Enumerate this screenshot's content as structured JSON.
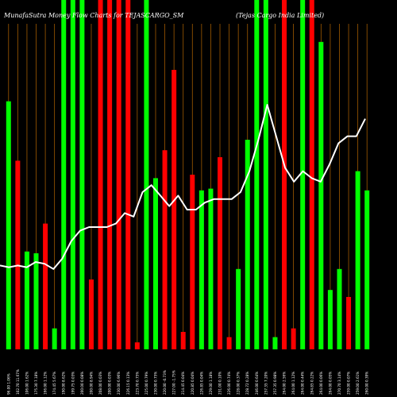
{
  "chart_data": {
    "type": "bar",
    "title_left": "MunafaSutra Money Flow Charts for TEJASCARGO_SM",
    "title_right": "(Tejas Cargo India Limited)",
    "y_range": [
      0,
      100
    ],
    "grid_color": "#a05a00",
    "line_color": "#ffffff",
    "bars": [
      {
        "label": "96.00 1.06%",
        "value": 71,
        "color": "#00ff00"
      },
      {
        "label": "102.70 11.67%",
        "value": 54,
        "color": "#ff0000"
      },
      {
        "label": "106.00 1.62%",
        "value": 28,
        "color": "#00ff00"
      },
      {
        "label": "175.30 7.18%",
        "value": 27.5,
        "color": "#00ff00"
      },
      {
        "label": "166.00 1.12%",
        "value": 36,
        "color": "#ff0000"
      },
      {
        "label": "174.45 5.67%",
        "value": 6,
        "color": "#00ff00"
      },
      {
        "label": "190.00 8.62%",
        "value": 100,
        "color": "#00ff00"
      },
      {
        "label": "199.75 0.03%",
        "value": 100,
        "color": "#00ff00"
      },
      {
        "label": "200.00 0.08%",
        "value": 100,
        "color": "#00ff00"
      },
      {
        "label": "200.00 8.94%",
        "value": 20,
        "color": "#ff0000"
      },
      {
        "label": "208.00 0.03%",
        "value": 100,
        "color": "#ff0000"
      },
      {
        "label": "200.00 0.03%",
        "value": 100,
        "color": "#ff0000"
      },
      {
        "label": "230.00 6.96%",
        "value": 100,
        "color": "#ff0000"
      },
      {
        "label": "226.15 0.13%",
        "value": 100,
        "color": "#ff0000"
      },
      {
        "label": "223.70 0.75%",
        "value": 2,
        "color": "#ff0000"
      },
      {
        "label": "225.00 0.79%",
        "value": 100,
        "color": "#00ff00"
      },
      {
        "label": "230.00 0.75%",
        "value": 49,
        "color": "#00ff00"
      },
      {
        "label": "220.00 -0.73%",
        "value": 57,
        "color": "#ff0000"
      },
      {
        "label": "227.00 -1.75%",
        "value": 80,
        "color": "#ff0000"
      },
      {
        "label": "214.45 0.04%",
        "value": 5,
        "color": "#ff0000"
      },
      {
        "label": "220.85 0.04%",
        "value": 50,
        "color": "#ff0000"
      },
      {
        "label": "226.85 0.04%",
        "value": 45.5,
        "color": "#00ff00"
      },
      {
        "label": "229.00 1.18%",
        "value": 46,
        "color": "#00ff00"
      },
      {
        "label": "231.00 0.10%",
        "value": 55,
        "color": "#ff0000"
      },
      {
        "label": "226.00 0.74%",
        "value": 3.5,
        "color": "#ff0000"
      },
      {
        "label": "228.00 0.37%",
        "value": 23,
        "color": "#00ff00"
      },
      {
        "label": "228.72 0.28%",
        "value": 60,
        "color": "#00ff00"
      },
      {
        "label": "246.00 0.64%",
        "value": 100,
        "color": "#00ff00"
      },
      {
        "label": "257.35 7.20%",
        "value": 100,
        "color": "#00ff00"
      },
      {
        "label": "257.35 0.98%",
        "value": 3.5,
        "color": "#00ff00"
      },
      {
        "label": "264.00 2.56%",
        "value": 100,
        "color": "#ff0000"
      },
      {
        "label": "264.00 1.12%",
        "value": 6,
        "color": "#ff0000"
      },
      {
        "label": "264.00 0.44%",
        "value": 100,
        "color": "#00ff00"
      },
      {
        "label": "264.85 0.22%",
        "value": 100,
        "color": "#ff0000"
      },
      {
        "label": "264.00 0.06%",
        "value": 88,
        "color": "#00ff00"
      },
      {
        "label": "264.00 0.05%",
        "value": 17,
        "color": "#00ff00"
      },
      {
        "label": "270.70 3.14%",
        "value": 23,
        "color": "#00ff00"
      },
      {
        "label": "259.00 0.07%",
        "value": 15,
        "color": "#ff0000"
      },
      {
        "label": "259.00 2.61%",
        "value": 51,
        "color": "#00ff00"
      },
      {
        "label": "260.00 0.39%",
        "value": 45.5,
        "color": "#00ff00"
      }
    ],
    "line_values": [
      24,
      23.5,
      24,
      23.5,
      25,
      24.5,
      23,
      26,
      31,
      34,
      35,
      35,
      35,
      36,
      39,
      38,
      45,
      47,
      44,
      41,
      44,
      40,
      40,
      42,
      43,
      43,
      43,
      45,
      51,
      60,
      70,
      61,
      52,
      48,
      51,
      49,
      48,
      53,
      59,
      61,
      61,
      66
    ]
  }
}
